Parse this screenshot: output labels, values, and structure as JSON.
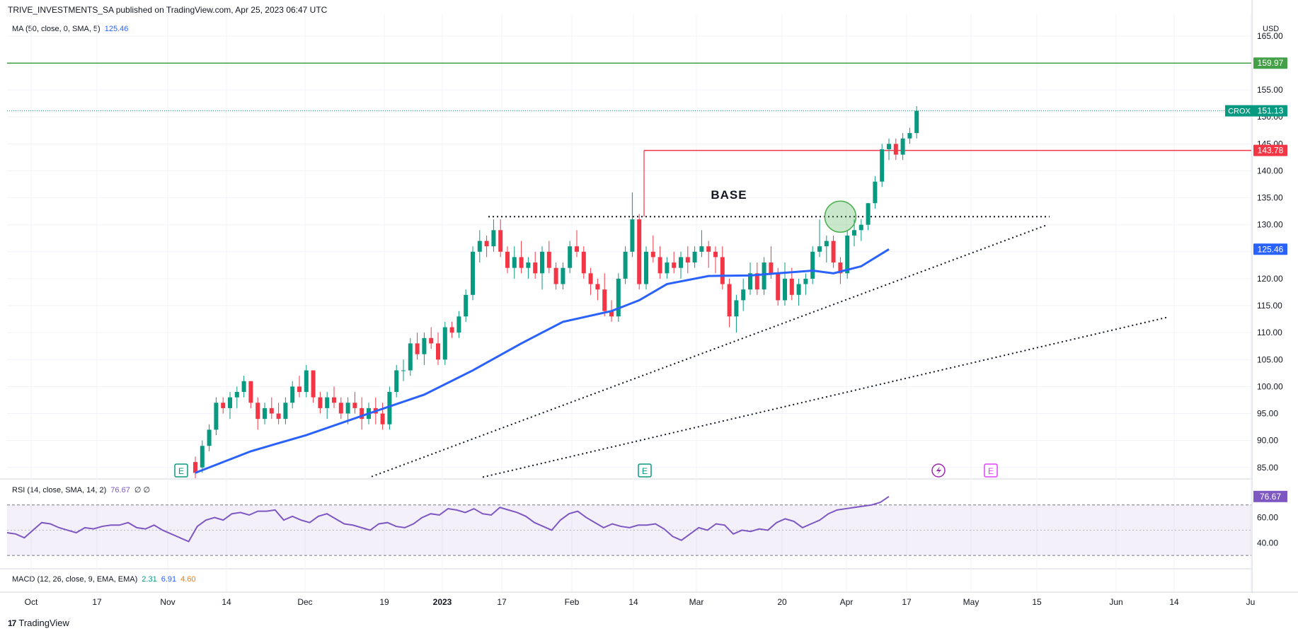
{
  "header": {
    "published": "TRIVE_INVESTMENTS_SA published on TradingView.com, Apr 25, 2023 06:47 UTC"
  },
  "indicators": {
    "ma": {
      "label": "MA (50, close, 0, SMA, 5)",
      "value": "125.46",
      "color": "#2962ff"
    },
    "rsi": {
      "label": "RSI (14, close, SMA, 14, 2)",
      "value": "76.67",
      "extra": "∅ ∅",
      "color": "#7e57c2"
    },
    "macd": {
      "label": "MACD (12, 26, close, 9, EMA, EMA)",
      "v1": "2.31",
      "v2": "6.91",
      "v3": "4.60",
      "c1": "#089981",
      "c2": "#2962ff",
      "c3": "#f57c00"
    }
  },
  "brand": {
    "name": "TradingView"
  },
  "chart_data": {
    "type": "candlestick",
    "symbol": "CROX",
    "currency": "USD",
    "ylim": [
      83,
      168
    ],
    "y_ticks": [
      85,
      90,
      95,
      100,
      105,
      110,
      115,
      120,
      125,
      130,
      135,
      140,
      145,
      150,
      155,
      165
    ],
    "x_ticks": [
      "Oct",
      "17",
      "Nov",
      "14",
      "Dec",
      "19",
      "2023",
      "17",
      "Feb",
      "14",
      "Mar",
      "20",
      "Apr",
      "17",
      "May",
      "15",
      "Jun",
      "14",
      "Ju"
    ],
    "last_price": {
      "symbol": "CROX",
      "value": "151.13",
      "color": "#089981"
    },
    "levels": [
      {
        "value": 159.97,
        "label": "159.97",
        "color": "#43a047"
      },
      {
        "value": 143.78,
        "label": "143.78",
        "color": "#f23645"
      }
    ],
    "ma_label": {
      "value": "125.46",
      "color": "#2962ff"
    },
    "annotations": [
      {
        "text": "BASE"
      }
    ],
    "earnings_markers": [
      "E",
      "E",
      "E"
    ],
    "up_color": "#089981",
    "down_color": "#f23645",
    "ohlc": [
      [
        86,
        87,
        83,
        84
      ],
      [
        85,
        90,
        84,
        89
      ],
      [
        89,
        93,
        88,
        92
      ],
      [
        92,
        98,
        91,
        97
      ],
      [
        97,
        98,
        95,
        96
      ],
      [
        96,
        99,
        94,
        98
      ],
      [
        98,
        100,
        96,
        99
      ],
      [
        99,
        102,
        98,
        101
      ],
      [
        101,
        101,
        96,
        97
      ],
      [
        97,
        98,
        92,
        94
      ],
      [
        94,
        97,
        93,
        96
      ],
      [
        96,
        98,
        94,
        95
      ],
      [
        95,
        97,
        93,
        94
      ],
      [
        94,
        98,
        93,
        97
      ],
      [
        97,
        101,
        96,
        100
      ],
      [
        100,
        102,
        98,
        99
      ],
      [
        99,
        104,
        98,
        103
      ],
      [
        103,
        103,
        97,
        98
      ],
      [
        98,
        99,
        95,
        96
      ],
      [
        96,
        99,
        94,
        98
      ],
      [
        98,
        100,
        96,
        97
      ],
      [
        97,
        98,
        94,
        95
      ],
      [
        95,
        98,
        93,
        97
      ],
      [
        97,
        99,
        95,
        96
      ],
      [
        96,
        98,
        92,
        94
      ],
      [
        94,
        97,
        93,
        96
      ],
      [
        96,
        98,
        93,
        95
      ],
      [
        95,
        97,
        92,
        93
      ],
      [
        93,
        100,
        92,
        99
      ],
      [
        99,
        104,
        98,
        103
      ],
      [
        103,
        105,
        101,
        103
      ],
      [
        103,
        109,
        102,
        108
      ],
      [
        108,
        110,
        105,
        106
      ],
      [
        106,
        110,
        104,
        109
      ],
      [
        109,
        111,
        107,
        108
      ],
      [
        108,
        110,
        104,
        105
      ],
      [
        105,
        112,
        104,
        111
      ],
      [
        111,
        112,
        109,
        110
      ],
      [
        110,
        114,
        109,
        113
      ],
      [
        113,
        118,
        112,
        117
      ],
      [
        117,
        126,
        116,
        125
      ],
      [
        125,
        129,
        123,
        127
      ],
      [
        127,
        128,
        124,
        126
      ],
      [
        126,
        131,
        125,
        129
      ],
      [
        129,
        131,
        124,
        125
      ],
      [
        125,
        126,
        121,
        122
      ],
      [
        122,
        126,
        120,
        124
      ],
      [
        124,
        127,
        121,
        122
      ],
      [
        122,
        124,
        120,
        123
      ],
      [
        123,
        125,
        120,
        121
      ],
      [
        121,
        126,
        118,
        125
      ],
      [
        125,
        127,
        121,
        122
      ],
      [
        122,
        123,
        118,
        119
      ],
      [
        119,
        123,
        118,
        122
      ],
      [
        122,
        127,
        121,
        126
      ],
      [
        126,
        129,
        124,
        125
      ],
      [
        125,
        126,
        120,
        121
      ],
      [
        121,
        122,
        117,
        119
      ],
      [
        119,
        120,
        116,
        118
      ],
      [
        118,
        121,
        113,
        114
      ],
      [
        114,
        116,
        112,
        113
      ],
      [
        113,
        121,
        112,
        120
      ],
      [
        120,
        126,
        119,
        125
      ],
      [
        125,
        136,
        124,
        131
      ],
      [
        131,
        132,
        118,
        119
      ],
      [
        119,
        126,
        118,
        125
      ],
      [
        125,
        128,
        123,
        124
      ],
      [
        124,
        126,
        120,
        121
      ],
      [
        121,
        124,
        120,
        123
      ],
      [
        123,
        125,
        121,
        122
      ],
      [
        122,
        125,
        120,
        124
      ],
      [
        124,
        126,
        121,
        123
      ],
      [
        123,
        126,
        122,
        125
      ],
      [
        125,
        129,
        124,
        126
      ],
      [
        126,
        127,
        122,
        125
      ],
      [
        125,
        126,
        121,
        124
      ],
      [
        124,
        126,
        118,
        119
      ],
      [
        119,
        120,
        111,
        113
      ],
      [
        113,
        117,
        110,
        116
      ],
      [
        116,
        120,
        114,
        118
      ],
      [
        118,
        123,
        117,
        121
      ],
      [
        121,
        123,
        117,
        118
      ],
      [
        118,
        124,
        117,
        123
      ],
      [
        123,
        126,
        120,
        121
      ],
      [
        121,
        122,
        115,
        116
      ],
      [
        116,
        123,
        115,
        120
      ],
      [
        120,
        122,
        116,
        117
      ],
      [
        117,
        120,
        115,
        119
      ],
      [
        119,
        121,
        117,
        120
      ],
      [
        120,
        126,
        119,
        125
      ],
      [
        125,
        131,
        124,
        126
      ],
      [
        126,
        128,
        123,
        127
      ],
      [
        127,
        128,
        122,
        123
      ],
      [
        123,
        124,
        119,
        121
      ],
      [
        121,
        129,
        120,
        128
      ],
      [
        128,
        131,
        126,
        129
      ],
      [
        129,
        131,
        127,
        130
      ],
      [
        130,
        134,
        129,
        134
      ],
      [
        134,
        139,
        133,
        138
      ],
      [
        138,
        145,
        137,
        144
      ],
      [
        144,
        146,
        142,
        145
      ],
      [
        145,
        146,
        142,
        143
      ],
      [
        143,
        147,
        142,
        146
      ],
      [
        146,
        148,
        145,
        147
      ],
      [
        147,
        152,
        146,
        151.13
      ]
    ],
    "ma_series": [
      [
        0,
        84
      ],
      [
        8,
        88
      ],
      [
        16,
        91
      ],
      [
        25,
        95
      ],
      [
        33,
        98.5
      ],
      [
        40,
        103
      ],
      [
        47,
        108
      ],
      [
        53,
        112
      ],
      [
        60,
        114
      ],
      [
        64,
        116
      ],
      [
        68,
        119
      ],
      [
        74,
        120.5
      ],
      [
        80,
        120.6
      ],
      [
        84,
        121
      ],
      [
        89,
        121.5
      ],
      [
        92,
        121
      ],
      [
        96,
        122.3
      ],
      [
        100,
        125.46
      ]
    ],
    "rsi": {
      "range": [
        20,
        90
      ],
      "bands": [
        70,
        50,
        30
      ],
      "ticks": [
        40,
        60
      ],
      "values": [
        48,
        47,
        44,
        50,
        56,
        55,
        52,
        50,
        48,
        52,
        51,
        53,
        54,
        54,
        56,
        52,
        51,
        54,
        50,
        47,
        44,
        41,
        53,
        58,
        60,
        58,
        63,
        64,
        62,
        65,
        65,
        66,
        58,
        61,
        58,
        56,
        61,
        63,
        59,
        55,
        54,
        52,
        50,
        55,
        56,
        53,
        52,
        55,
        60,
        63,
        62,
        67,
        66,
        64,
        67,
        63,
        62,
        68,
        66,
        64,
        61,
        56,
        53,
        50,
        58,
        63,
        65,
        60,
        56,
        52,
        55,
        53,
        52,
        54,
        54,
        55,
        51,
        45,
        42,
        47,
        52,
        50,
        55,
        54,
        47,
        50,
        49,
        51,
        50,
        56,
        59,
        57,
        52,
        55,
        58,
        63,
        66,
        67,
        68,
        69,
        70,
        72,
        76.67
      ]
    },
    "macd": {
      "v1": 2.31,
      "v2": 6.91,
      "v3": 4.6
    }
  }
}
